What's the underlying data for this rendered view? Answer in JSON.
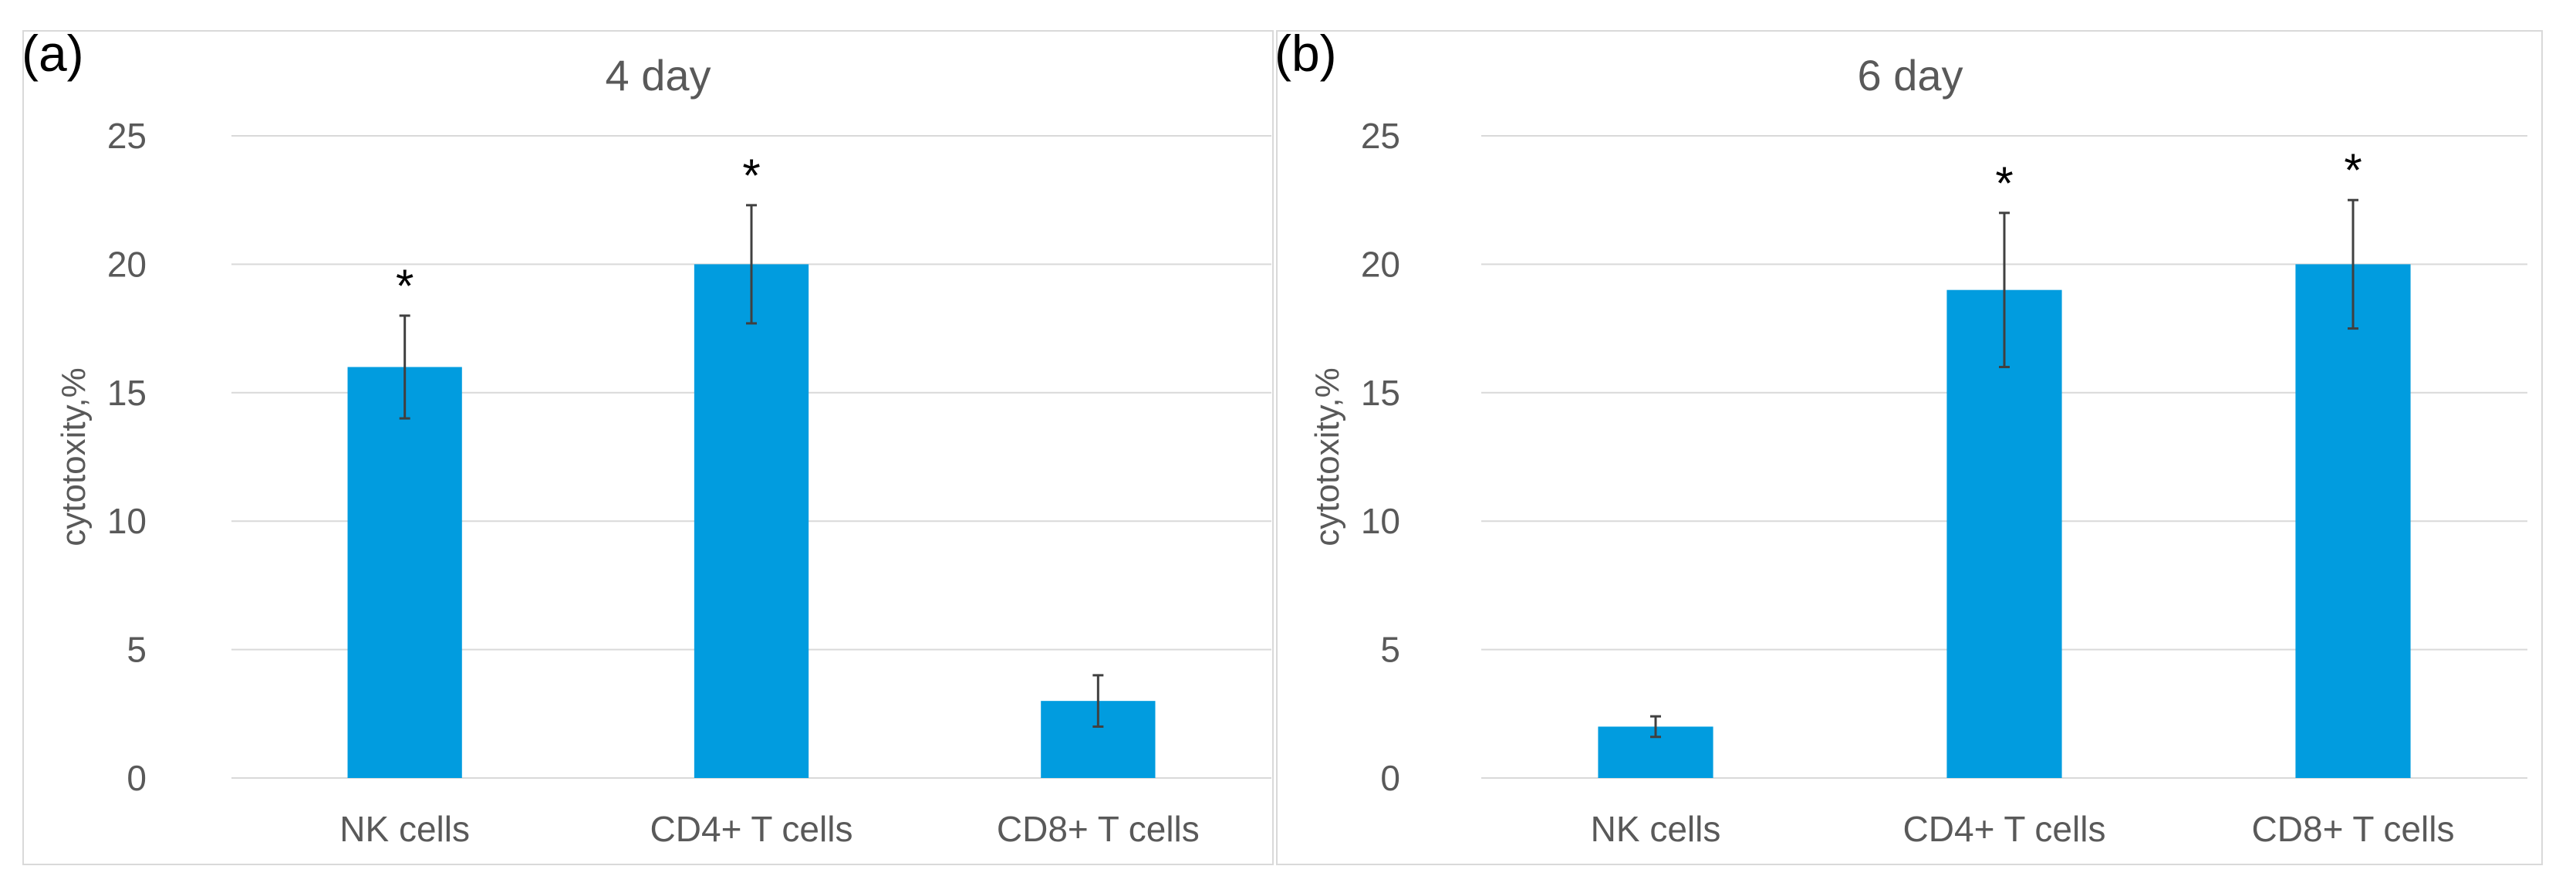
{
  "colors": {
    "bar": "#019cdf",
    "error_bar": "#404040",
    "grid": "#d9d9d9",
    "text": "#595959"
  },
  "chart_data": [
    {
      "panel": "(a)",
      "type": "bar",
      "title": "4 day",
      "xlabel": "",
      "ylabel": "cytotoxity,%",
      "ylim": [
        0,
        25
      ],
      "yticks": [
        0,
        5,
        10,
        15,
        20,
        25
      ],
      "grid": true,
      "legend": "none",
      "categories": [
        "NK cells",
        "CD4+ T cells",
        "CD8+ T cells"
      ],
      "values": [
        16,
        20,
        3
      ],
      "errors": [
        2,
        2.3,
        1
      ],
      "significance": [
        "*",
        "*",
        ""
      ]
    },
    {
      "panel": "(b)",
      "type": "bar",
      "title": "6 day",
      "xlabel": "",
      "ylabel": "cytotoxity,%",
      "ylim": [
        0,
        25
      ],
      "yticks": [
        0,
        5,
        10,
        15,
        20,
        25
      ],
      "grid": true,
      "legend": "none",
      "categories": [
        "NK cells",
        "CD4+ T cells",
        "CD8+ T cells"
      ],
      "values": [
        2,
        19,
        20
      ],
      "errors": [
        0.4,
        3,
        2.5
      ],
      "significance": [
        "",
        "*",
        "*"
      ]
    }
  ]
}
